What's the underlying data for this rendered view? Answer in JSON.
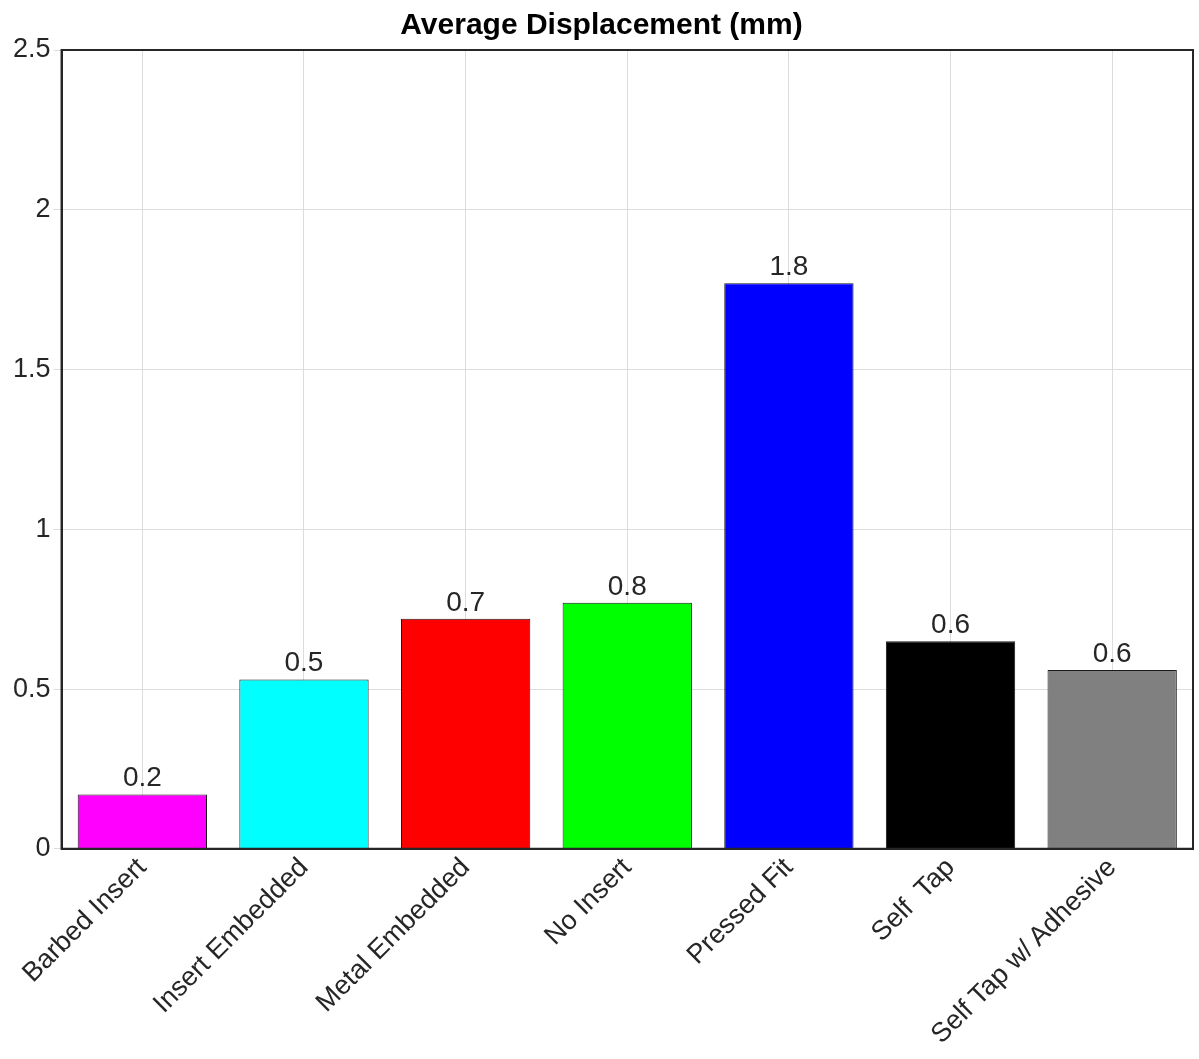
{
  "chart_data": {
    "type": "bar",
    "title": "Average Displacement (mm)",
    "categories": [
      "Barbed Insert",
      "Insert Embedded",
      "Metal Embedded",
      "No Insert",
      "Pressed Fit",
      "Self  Tap",
      "Self Tap w/ Adhesive"
    ],
    "values": [
      0.17,
      0.53,
      0.72,
      0.77,
      1.77,
      0.65,
      0.56
    ],
    "colors": [
      "#ff00ff",
      "#00ffff",
      "#ff0000",
      "#00ff00",
      "#0000ff",
      "#000000",
      "#808080"
    ],
    "value_labels": [
      "0.2",
      "0.5",
      "0.7",
      "0.8",
      "1.8",
      "0.6",
      "0.6"
    ],
    "ylim": [
      0,
      2.5
    ],
    "yticks": [
      0,
      0.5,
      1,
      1.5,
      2,
      2.5
    ],
    "grid": true
  }
}
